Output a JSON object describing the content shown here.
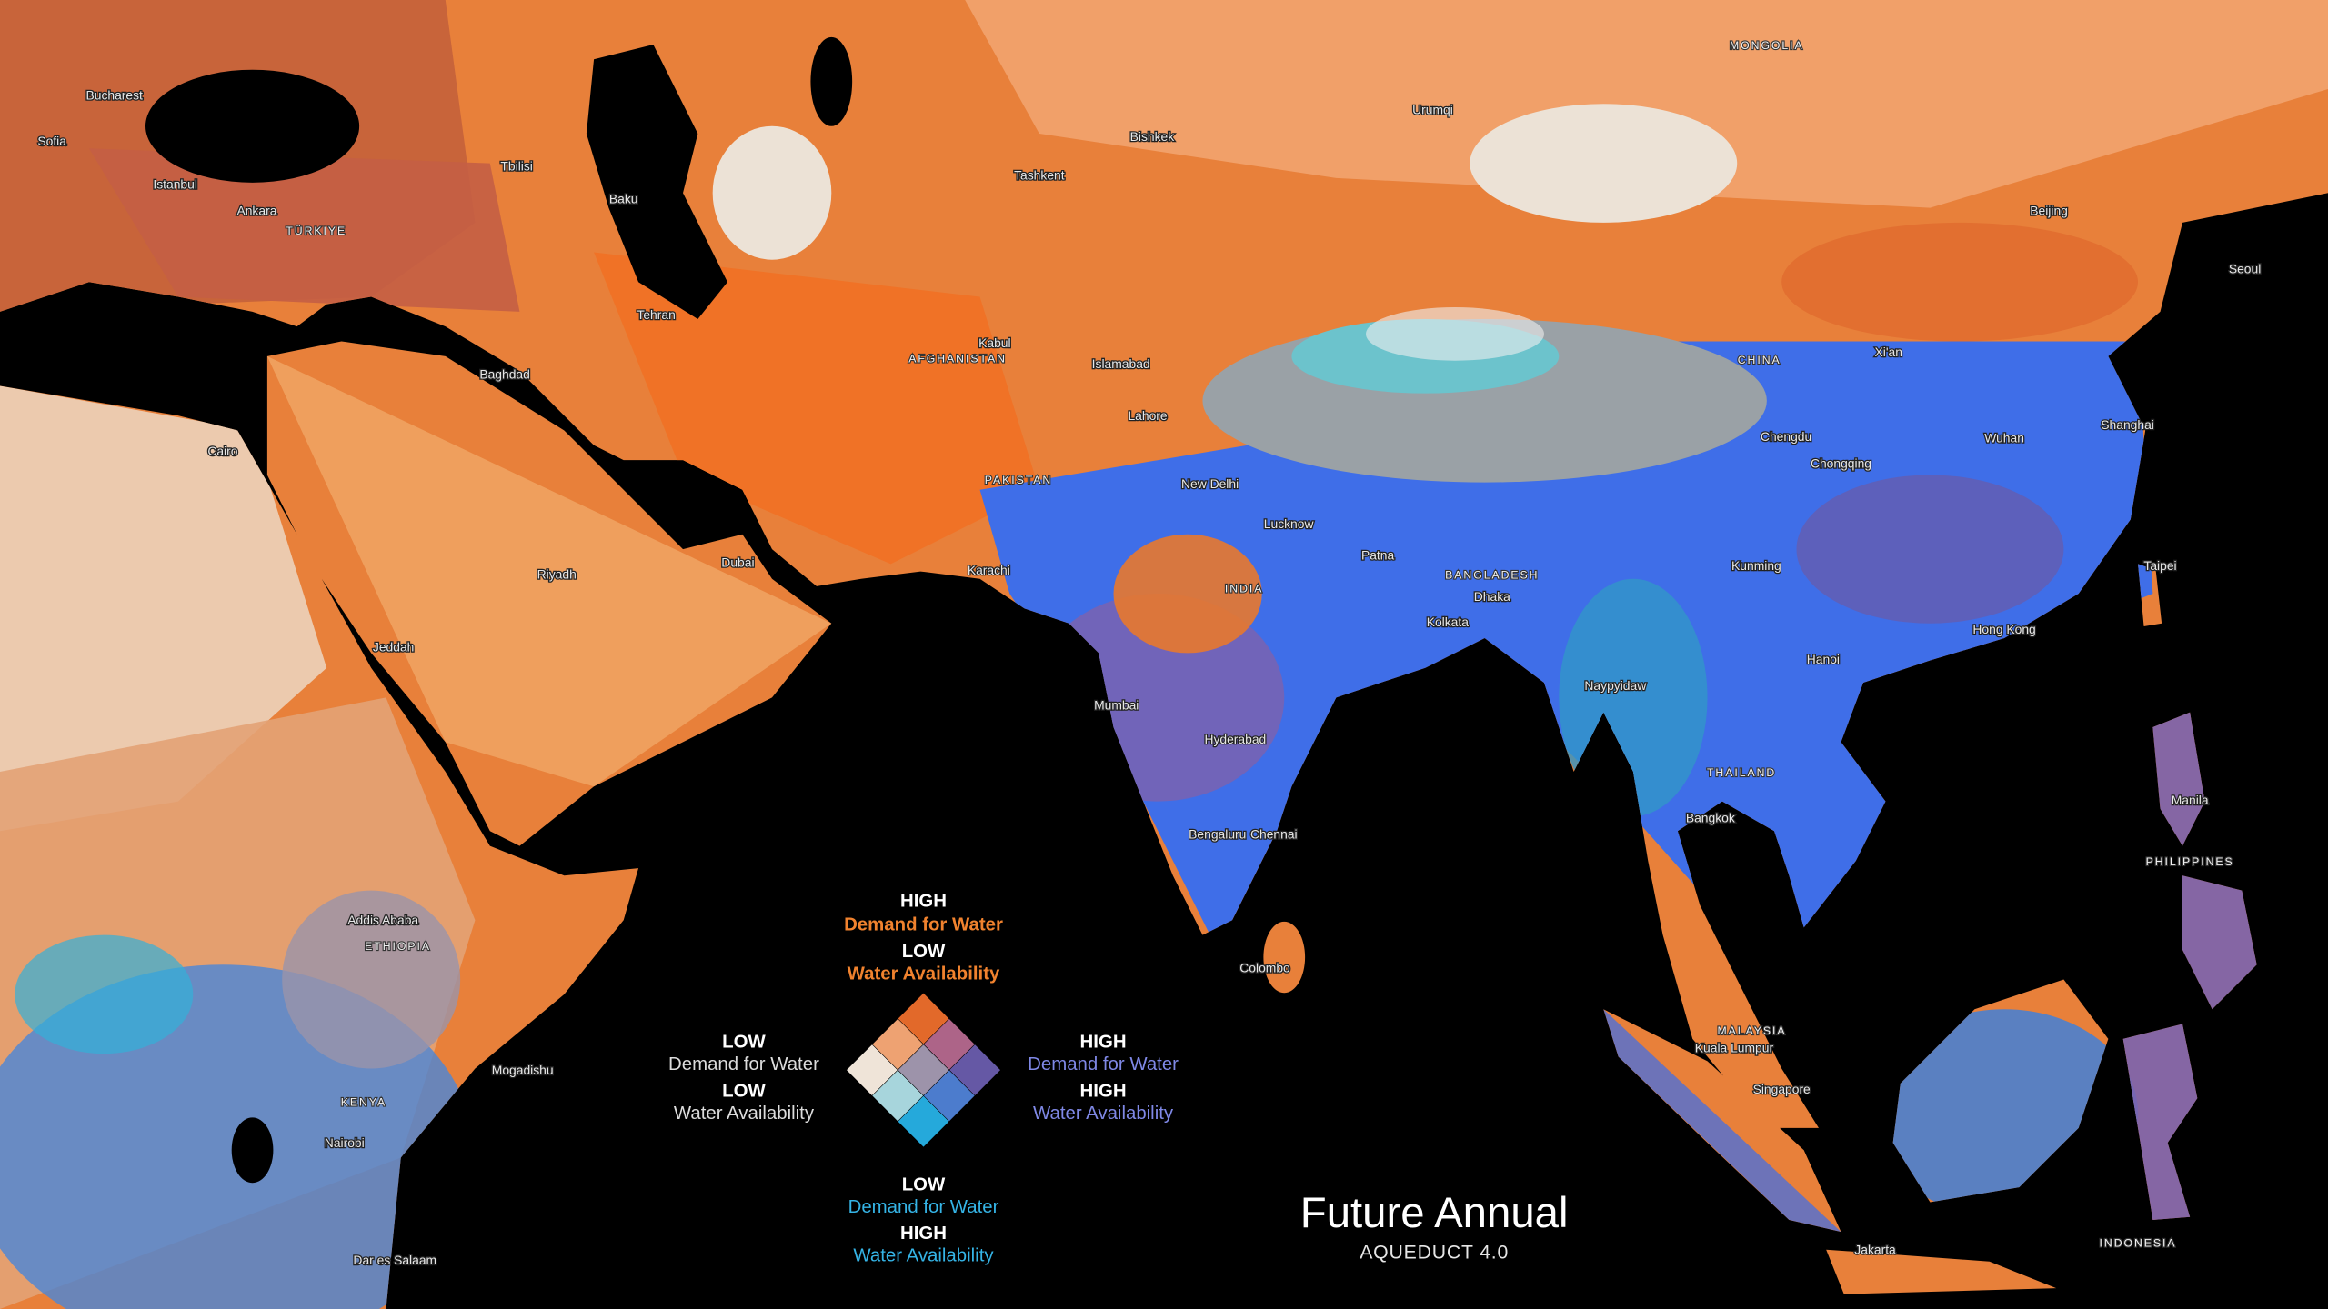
{
  "title": "Future Annual",
  "subtitle": "AQUEDUCT 4.0",
  "legend": {
    "top": [
      "HIGH",
      "Demand for Water",
      "LOW",
      "Water Availability"
    ],
    "left": [
      "LOW",
      "Demand for Water",
      "LOW",
      "Water Availability"
    ],
    "right": [
      "HIGH",
      "Demand for Water",
      "HIGH",
      "Water Availability"
    ],
    "bottom": [
      "LOW",
      "Demand for Water",
      "HIGH",
      "Water Availability"
    ],
    "colors": [
      [
        "#e2692a",
        "#ad6488",
        "#6558a5"
      ],
      [
        "#eea272",
        "#9d93aa",
        "#4c7ccd"
      ],
      [
        "#efe4d8",
        "#a7d5dc",
        "#25a9db"
      ]
    ]
  },
  "places": [
    "Bucharest",
    "Sofia",
    "Istanbul",
    "Ankara",
    "Tbilisi",
    "Baku",
    "Tehran",
    "Baghdad",
    "Cairo",
    "Riyadh",
    "Dubai",
    "Karachi",
    "Tashkent",
    "Bishkek",
    "Urumqi",
    "Islamabad",
    "Lahore",
    "New Delhi",
    "Mumbai",
    "Hyderabad",
    "Bengaluru",
    "Chennai",
    "Kolkata",
    "Dhaka",
    "Bangkok",
    "Hanoi",
    "Kunming",
    "Chengdu",
    "Chongqing",
    "Wuhan",
    "Shanghai",
    "Beijing",
    "Seoul",
    "Hong Kong",
    "Manila",
    "Singapore",
    "Kuala Lumpur",
    "Jakarta",
    "Addis Ababa",
    "Nairobi",
    "Mogadishu",
    "Jeddah",
    "Kabul",
    "Taipei",
    "Lucknow",
    "Patna",
    "Dar es Salaam",
    "Colombo",
    "Xi'an",
    "Naypyidaw"
  ],
  "countries": [
    "MONGOLIA",
    "INDIA",
    "CHINA",
    "PAKISTAN",
    "AFGHANISTAN",
    "TÜRKIYE",
    "BANGLADESH",
    "THAILAND",
    "INDONESIA",
    "KENYA",
    "ETHIOPIA",
    "PHILIPPINES",
    "MALAYSIA"
  ]
}
